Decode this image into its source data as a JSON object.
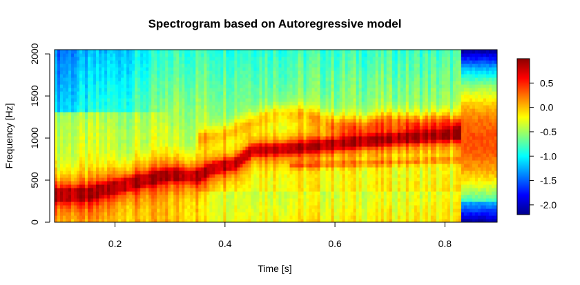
{
  "chart_data": {
    "type": "heatmap",
    "title": "Spectrogram based on Autoregressive model",
    "xlabel": "Time [s]",
    "ylabel": "Frequency [Hz]",
    "xlim": [
      0.09,
      0.895
    ],
    "ylim": [
      0,
      2050
    ],
    "x_ticks": [
      0.2,
      0.4,
      0.6,
      0.8
    ],
    "x_tick_labels": [
      "0.2",
      "0.4",
      "0.6",
      "0.8"
    ],
    "y_ticks": [
      0,
      500,
      1000,
      1500,
      2000
    ],
    "y_tick_labels": [
      "0",
      "500",
      "1000",
      "1500",
      "2000"
    ],
    "colorbar": {
      "range": [
        -2.2,
        1.0
      ],
      "ticks": [
        0.5,
        0.0,
        -0.5,
        -1.0,
        -1.5,
        -2.0
      ],
      "tick_labels": [
        "0.5",
        "0.0",
        "-0.5",
        "-1.0",
        "-1.5",
        "-2.0"
      ],
      "colors": [
        "#00008b",
        "#0000ff",
        "#0080ff",
        "#00ffff",
        "#80ff80",
        "#ffff00",
        "#ff8000",
        "#ff0000",
        "#8b0000"
      ]
    },
    "ridge": {
      "time": [
        0.1,
        0.15,
        0.2,
        0.25,
        0.3,
        0.35,
        0.38,
        0.42,
        0.45,
        0.5,
        0.55,
        0.6,
        0.65,
        0.7,
        0.75,
        0.8,
        0.83
      ],
      "frequency_hz": [
        330,
        340,
        420,
        500,
        570,
        550,
        650,
        700,
        860,
        870,
        900,
        930,
        960,
        990,
        1010,
        1030,
        1050
      ]
    },
    "secondary_ridge": {
      "time": [
        0.35,
        0.4,
        0.45,
        0.5,
        0.55,
        0.6,
        0.65,
        0.7,
        0.75,
        0.8,
        0.82
      ],
      "frequency_hz": [
        990,
        1050,
        1200,
        1300,
        1280,
        1170,
        1150,
        1220,
        1170,
        1200,
        1150
      ]
    },
    "lower_ridge": {
      "time": [
        0.53,
        0.6,
        0.7,
        0.8,
        0.82
      ],
      "frequency_hz": [
        680,
        690,
        710,
        740,
        740
      ]
    }
  }
}
